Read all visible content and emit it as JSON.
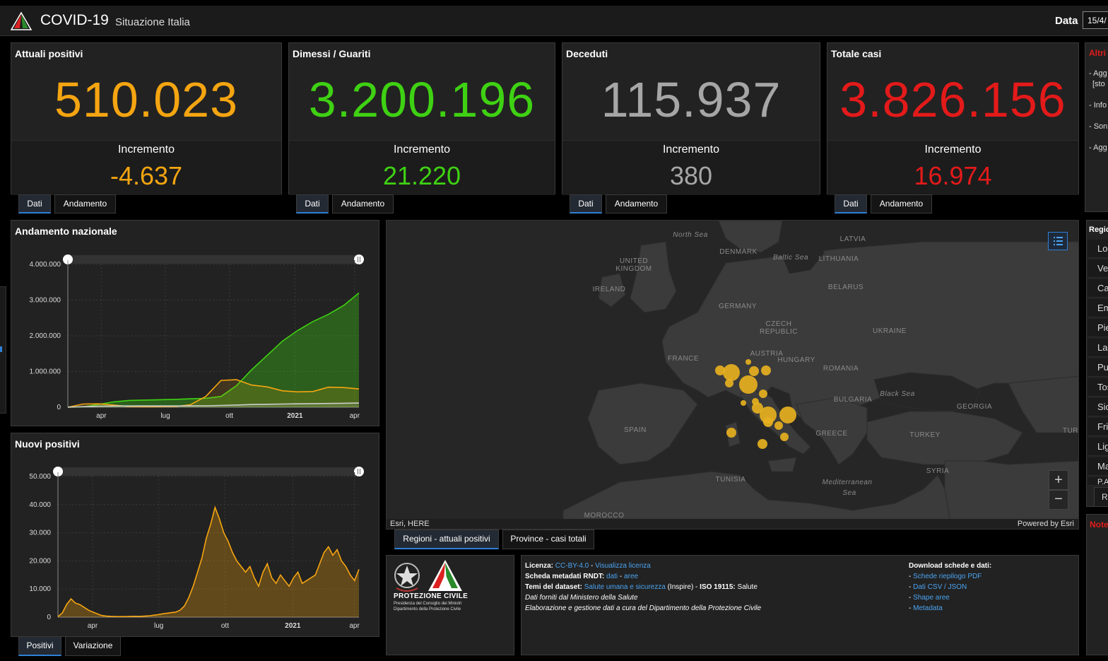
{
  "header": {
    "title": "COVID-19",
    "subtitle": "Situazione Italia",
    "date_label": "Data",
    "date_value": "15/4/"
  },
  "kpis": [
    {
      "title": "Attuali positivi",
      "value": "510.023",
      "incr_label": "Incremento",
      "incr_value": "-4.637",
      "color": "#f5a511"
    },
    {
      "title": "Dimessi / Guariti",
      "value": "3.200.196",
      "incr_label": "Incremento",
      "incr_value": "21.220",
      "color": "#3fd113"
    },
    {
      "title": "Deceduti",
      "value": "115.937",
      "incr_label": "Incremento",
      "incr_value": "380",
      "color": "#a6a6a6"
    },
    {
      "title": "Totale casi",
      "value": "3.826.156",
      "incr_label": "Incremento",
      "incr_value": "16.974",
      "color": "#e31a1a"
    }
  ],
  "kpi_tabs": {
    "dati": "Dati",
    "andamento": "Andamento"
  },
  "right_panel": {
    "title": "Altri",
    "lines": [
      "- Agg",
      "[sto",
      "- Info",
      "- Son",
      "- Agg"
    ]
  },
  "national_chart": {
    "title": "Andamento nazionale",
    "chart_data": {
      "type": "line",
      "x_ticks": [
        "apr",
        "lug",
        "ott",
        "2021",
        "apr"
      ],
      "y_ticks": [
        "4.000.000",
        "3.000.000",
        "2.000.000",
        "1.000.000",
        "0"
      ],
      "ylim": [
        0,
        4000000
      ],
      "series": [
        {
          "color": "#3fd113",
          "values": [
            0,
            10000,
            80000,
            150000,
            190000,
            200000,
            210000,
            220000,
            235000,
            250000,
            300000,
            600000,
            1050000,
            1450000,
            1850000,
            2150000,
            2400000,
            2600000,
            2850000,
            3200196
          ]
        },
        {
          "color": "#f5a511",
          "values": [
            0,
            90000,
            95000,
            60000,
            20000,
            14000,
            15000,
            20000,
            70000,
            300000,
            750000,
            770000,
            620000,
            570000,
            460000,
            430000,
            440000,
            560000,
            550000,
            510023
          ]
        },
        {
          "color": "#cccccc",
          "values": [
            0,
            15000,
            30000,
            34000,
            35000,
            35500,
            36000,
            36500,
            38000,
            40000,
            50000,
            62000,
            75000,
            82000,
            90000,
            96000,
            100000,
            105000,
            110000,
            115937
          ]
        }
      ]
    }
  },
  "new_chart": {
    "title": "Nuovi positivi",
    "chart_data": {
      "type": "area",
      "x_ticks": [
        "apr",
        "lug",
        "ott",
        "2021",
        "apr"
      ],
      "y_ticks": [
        "50.000",
        "40.000",
        "30.000",
        "20.000",
        "10.000",
        "0"
      ],
      "ylim": [
        0,
        50000
      ],
      "color": "#f5a511",
      "values": [
        200,
        1500,
        4500,
        6500,
        5000,
        4500,
        3500,
        2500,
        1800,
        1200,
        600,
        400,
        300,
        250,
        200,
        200,
        250,
        300,
        300,
        300,
        400,
        500,
        700,
        900,
        1200,
        1400,
        1600,
        1800,
        2500,
        4000,
        7000,
        11000,
        16000,
        21000,
        28000,
        33000,
        39000,
        35000,
        30000,
        27000,
        23000,
        20000,
        18000,
        16000,
        18000,
        14000,
        11000,
        16000,
        19000,
        14000,
        12000,
        15000,
        13000,
        11000,
        14000,
        16000,
        12000,
        13000,
        14000,
        15000,
        19000,
        23000,
        25000,
        22000,
        24000,
        20000,
        18000,
        15000,
        13000,
        17000
      ]
    },
    "tabs": {
      "positivi": "Positivi",
      "variazione": "Variazione"
    }
  },
  "map": {
    "labels": [
      "North Sea",
      "DENMARK",
      "Baltic Sea",
      "LATVIA",
      "LITHUANIA",
      "UNITED",
      "KINGDOM",
      "IRELAND",
      "BELARUS",
      "GERMANY",
      "CZECH",
      "REPUBLIC",
      "UKRAINE",
      "AUSTRIA",
      "HUNGARY",
      "FRANCE",
      "ROMANIA",
      "Black Sea",
      "BULGARIA",
      "GEORGIA",
      "SPAIN",
      "GREECE",
      "TURKEY",
      "TUR",
      "TUNISIA",
      "Mediterranean",
      "Sea",
      "SYRIA",
      "MOROCCO"
    ],
    "attribution": "Esri, HERE",
    "powered": "Powered by Esri",
    "tabs": {
      "regioni": "Regioni - attuali positivi",
      "province": "Province - casi totali"
    },
    "bubble_color": "#e6b020"
  },
  "regions": {
    "title": "Regio",
    "items": [
      "Lo",
      "Ve",
      "Ca",
      "Em",
      "Pie",
      "Laz",
      "Pu",
      "Tos",
      "Sic",
      "Fri",
      "Lig",
      "Ma",
      "P.A."
    ],
    "footer": "R"
  },
  "notes": {
    "title": "Note"
  },
  "footer": {
    "seal_title": "PROTEZIONE CIVILE",
    "seal_line1": "Presidenza del Consiglio dei Ministri",
    "seal_line2": "Dipartimento della Protezione Civile",
    "licenza_label": "Licenza:",
    "licenza_value": "CC-BY-4.0",
    "licenza_link": "Visualizza licenza",
    "rndt_label": "Scheda metadati RNDT:",
    "rndt_dati": "dati",
    "rndt_aree": "aree",
    "temi_label": "Temi del dataset:",
    "temi_value": "Salute umana e sicurezza",
    "temi_inspire": "(Inspire) -",
    "iso_label": "ISO 19115:",
    "iso_value": "Salute",
    "line4": "Dati forniti dal Ministero della Salute",
    "line5": "Elaborazione e gestione dati a cura del Dipartimento della Protezione Civile",
    "downloads_title": "Download schede e dati:",
    "downloads": [
      "Schede riepilogo PDF",
      "Dati CSV / JSON",
      "Shape aree",
      "Metadata"
    ]
  }
}
